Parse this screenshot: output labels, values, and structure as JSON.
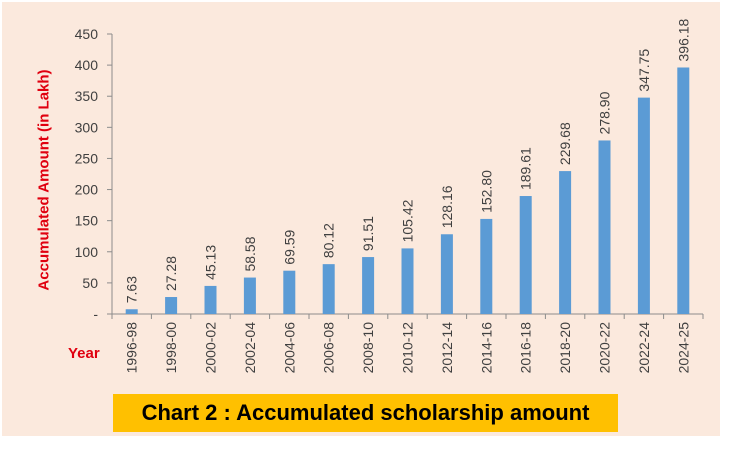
{
  "chart_data": {
    "type": "bar",
    "title": "Chart 2 : Accumulated scholarship amount",
    "xlabel": "Year",
    "ylabel": "Accumulated Amount (in Lakh)",
    "ylim": [
      0,
      450
    ],
    "yticks": [
      "-",
      "50",
      "100",
      "150",
      "200",
      "250",
      "300",
      "350",
      "400",
      "450"
    ],
    "categories": [
      "1996-98",
      "1998-00",
      "2000-02",
      "2002-04",
      "2004-06",
      "2006-08",
      "2008-10",
      "2010-12",
      "2012-14",
      "2014-16",
      "2016-18",
      "2018-20",
      "2020-22",
      "2022-24",
      "2024-25"
    ],
    "values": [
      7.63,
      27.28,
      45.13,
      58.58,
      69.59,
      80.12,
      91.51,
      105.42,
      128.16,
      152.8,
      189.61,
      229.68,
      278.9,
      347.75,
      396.18
    ],
    "value_labels": [
      "7.63",
      "27.28",
      "45.13",
      "58.58",
      "69.59",
      "80.12",
      "91.51",
      "105.42",
      "128.16",
      "152.80",
      "189.61",
      "229.68",
      "278.90",
      "347.75",
      "396.18"
    ],
    "bar_color": "#5b9bd5",
    "axis_title_color": "#e0000f",
    "background_color": "#fbe9dd",
    "title_box_color": "#ffc000",
    "grid": false,
    "legend": "none"
  }
}
